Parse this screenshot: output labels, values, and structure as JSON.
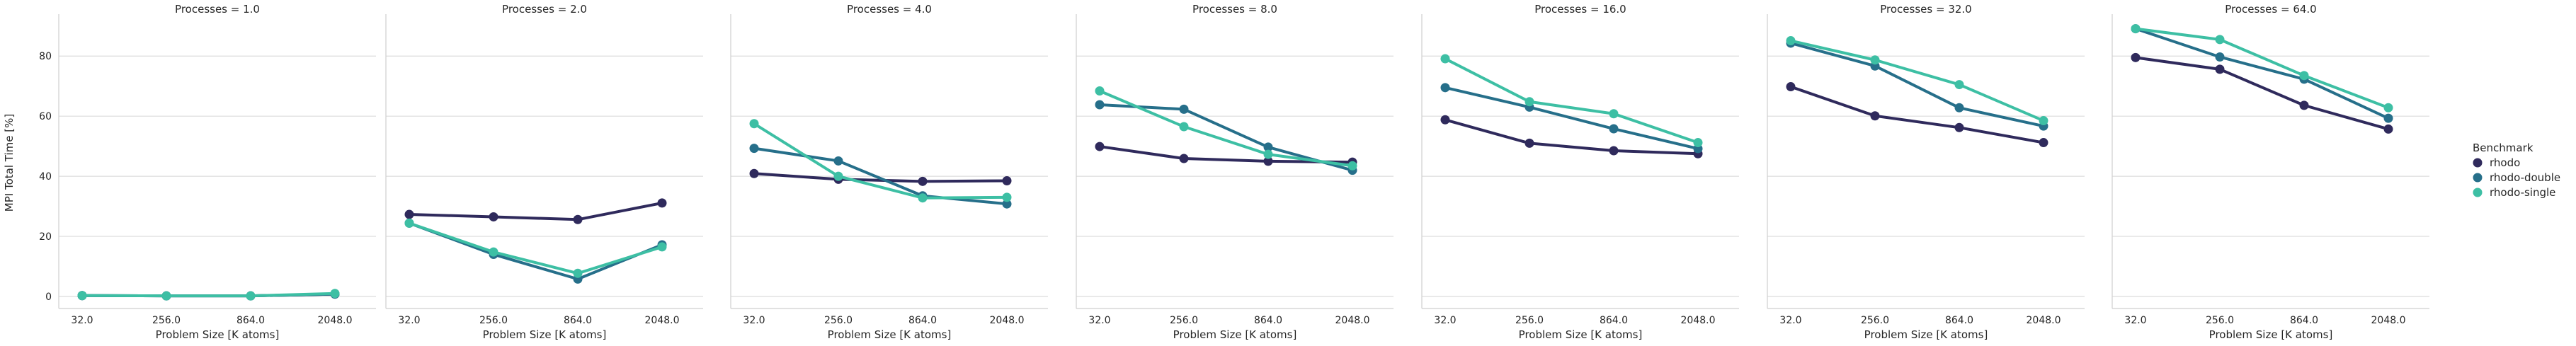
{
  "chart_data": {
    "type": "line",
    "ylabel": "MPI Total Time [%]",
    "xlabel": "Problem Size [K atoms]",
    "categories": [
      "32.0",
      "256.0",
      "864.0",
      "2048.0"
    ],
    "ylim": [
      -4,
      93
    ],
    "yticks": [
      "0",
      "20",
      "40",
      "60",
      "80"
    ],
    "grid": "horizontal",
    "legend": {
      "title": "Benchmark",
      "placement": "right",
      "entries": [
        "rhodo",
        "rhodo-double",
        "rhodo-single"
      ]
    },
    "colors": [
      "#2f2a5c",
      "#266f8a",
      "#3dbfa4"
    ],
    "panels": [
      {
        "title": "Processes = 1.0",
        "series": [
          {
            "name": "rhodo",
            "values": [
              0.3,
              0.2,
              0.2,
              0.8
            ]
          },
          {
            "name": "rhodo-double",
            "values": [
              0.3,
              0.2,
              0.2,
              0.8
            ]
          },
          {
            "name": "rhodo-single",
            "values": [
              0.3,
              0.2,
              0.2,
              1.0
            ]
          }
        ]
      },
      {
        "title": "Processes = 2.0",
        "series": [
          {
            "name": "rhodo",
            "values": [
              27.3,
              26.5,
              25.6,
              31.1
            ]
          },
          {
            "name": "rhodo-double",
            "values": [
              24.4,
              14.0,
              5.8,
              17.2
            ]
          },
          {
            "name": "rhodo-single",
            "values": [
              24.4,
              14.8,
              7.7,
              16.5
            ]
          }
        ]
      },
      {
        "title": "Processes = 4.0",
        "series": [
          {
            "name": "rhodo",
            "values": [
              40.9,
              39.0,
              38.3,
              38.5
            ]
          },
          {
            "name": "rhodo-double",
            "values": [
              49.3,
              45.1,
              33.5,
              30.8
            ]
          },
          {
            "name": "rhodo-single",
            "values": [
              57.5,
              40.0,
              32.8,
              33.0
            ]
          }
        ]
      },
      {
        "title": "Processes = 8.0",
        "series": [
          {
            "name": "rhodo",
            "values": [
              49.9,
              45.9,
              45.0,
              44.7
            ]
          },
          {
            "name": "rhodo-double",
            "values": [
              63.8,
              62.3,
              49.7,
              42.0
            ]
          },
          {
            "name": "rhodo-single",
            "values": [
              68.4,
              56.5,
              47.3,
              43.5
            ]
          }
        ]
      },
      {
        "title": "Processes = 16.0",
        "series": [
          {
            "name": "rhodo",
            "values": [
              58.8,
              51.0,
              48.5,
              47.5
            ]
          },
          {
            "name": "rhodo-double",
            "values": [
              69.5,
              63.0,
              55.8,
              49.2
            ]
          },
          {
            "name": "rhodo-single",
            "values": [
              79.1,
              64.8,
              60.8,
              51.2
            ]
          }
        ]
      },
      {
        "title": "Processes = 32.0",
        "series": [
          {
            "name": "rhodo",
            "values": [
              69.8,
              60.1,
              56.2,
              51.2
            ]
          },
          {
            "name": "rhodo-double",
            "values": [
              84.3,
              76.7,
              62.8,
              56.7
            ]
          },
          {
            "name": "rhodo-single",
            "values": [
              85.1,
              78.7,
              70.5,
              58.5
            ]
          }
        ]
      },
      {
        "title": "Processes = 64.0",
        "series": [
          {
            "name": "rhodo",
            "values": [
              79.5,
              75.6,
              63.6,
              55.7
            ]
          },
          {
            "name": "rhodo-double",
            "values": [
              89.1,
              79.7,
              72.3,
              59.3
            ]
          },
          {
            "name": "rhodo-single",
            "values": [
              89.1,
              85.5,
              73.5,
              62.8
            ]
          }
        ]
      }
    ]
  }
}
